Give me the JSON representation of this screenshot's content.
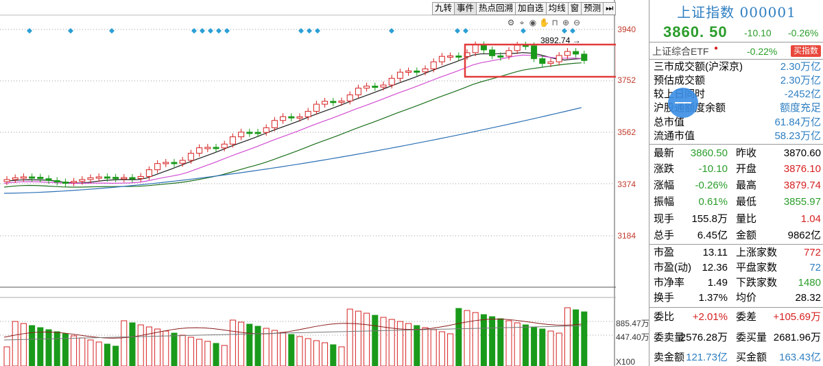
{
  "toolbar": {
    "tabs": [
      "九转",
      "事件",
      "热点回溯",
      "加自选",
      "均线",
      "窗",
      "预测",
      "⏭"
    ]
  },
  "tool_icons": [
    "gear-icon",
    "move-icon",
    "eye-icon",
    "hand-icon",
    "lock-icon",
    "zoom-in-icon",
    "zoom-out-icon"
  ],
  "chart": {
    "max_label": "3892.74",
    "price_labels": [
      "3940",
      "3752",
      "3562",
      "3374",
      "3184"
    ],
    "volume_labels": [
      "885.47万",
      "447.40万"
    ],
    "unit_label": "X100",
    "colors": {
      "up": "#d62020",
      "down": "#1a9a1a",
      "ma5": "#1b1b1b",
      "ma10": "#d24cd2",
      "ma20": "#1a6f1a",
      "ma60": "#2a6fb5",
      "highlight": "#e23a3a",
      "marker": "#2a9fd6"
    }
  },
  "panel": {
    "title": "上证指数 000001",
    "price": "3860. 50",
    "change": "-10.10",
    "change_pct": "-0.26%",
    "etf": {
      "label": "上证综合ETF",
      "pct": "-0.22%",
      "buy": "买指数"
    },
    "stats1": [
      {
        "label": "三市成交额(沪深京)",
        "value": "2.30万亿"
      },
      {
        "label": "预估成交额",
        "value": "2.30万亿"
      },
      {
        "label": "较上日同时",
        "value": "-2452亿"
      },
      {
        "label": "沪股通额度余额",
        "value": "额度充足"
      },
      {
        "label": "总市值",
        "value": "61.84万亿"
      },
      {
        "label": "流通市值",
        "value": "58.23万亿"
      }
    ],
    "quote": [
      {
        "l1": "最新",
        "v1": "3860.50",
        "l2": "昨收",
        "v2": "3870.60"
      },
      {
        "l1": "涨跌",
        "v1": "-10.10",
        "l2": "开盘",
        "v2": "3876.10"
      },
      {
        "l1": "涨幅",
        "v1": "-0.26%",
        "l2": "最高",
        "v2": "3879.74"
      },
      {
        "l1": "振幅",
        "v1": "0.61%",
        "l2": "最低",
        "v2": "3855.97"
      },
      {
        "l1": "现手",
        "v1": "155.8万",
        "l2": "量比",
        "v2": "1.04"
      },
      {
        "l1": "总手",
        "v1": "6.45亿",
        "l2": "金额",
        "v2": "9862亿"
      }
    ],
    "market": [
      {
        "l1": "市盈",
        "v1": "13.11",
        "l2": "上涨家数",
        "v2": "772"
      },
      {
        "l1": "市盈(动)",
        "v1": "12.36",
        "l2": "平盘家数",
        "v2": "72"
      },
      {
        "l1": "市净率",
        "v1": "1.49",
        "l2": "下跌家数",
        "v2": "1480"
      },
      {
        "l1": "换手",
        "v1": "1.37%",
        "l2": "均价",
        "v2": "28.32"
      }
    ],
    "orders": [
      {
        "l1": "委比",
        "v1": "+2.01%",
        "l2": "委差",
        "v2": "+105.69万"
      },
      {
        "l1": "委卖量",
        "v1": "2576.28万",
        "l2": "委买量",
        "v2": "2681.96万"
      },
      {
        "l1": "卖金额",
        "v1": "121.73亿",
        "l2": "买金额",
        "v2": "163.43亿"
      }
    ]
  }
}
